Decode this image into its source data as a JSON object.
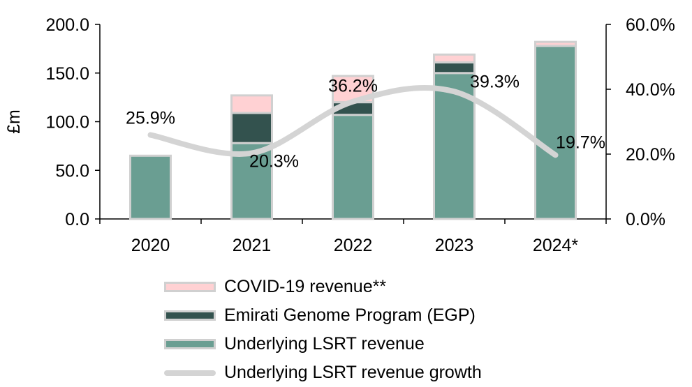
{
  "chart_data": {
    "type": "bar",
    "stacked": true,
    "categories": [
      "2020",
      "2021",
      "2022",
      "2023",
      "2024*"
    ],
    "series": [
      {
        "name": "Underlying LSRT revenue",
        "values": [
          65,
          78,
          107,
          150,
          178
        ],
        "color": "#6a9e92"
      },
      {
        "name": "Emirati Genome Program (EGP)",
        "values": [
          0,
          31,
          13,
          11,
          0
        ],
        "color": "#33524e"
      },
      {
        "name": "COVID-19 revenue**",
        "values": [
          0,
          18,
          27,
          8,
          4
        ],
        "color": "#ffd1d3"
      }
    ],
    "line_series": {
      "name": "Underlying LSRT revenue growth",
      "values": [
        25.9,
        20.3,
        36.2,
        39.3,
        19.7
      ],
      "labels": [
        "25.9%",
        "20.3%",
        "36.2%",
        "39.3%",
        "19.7%"
      ],
      "color": "#d4d4d4",
      "axis": "right"
    },
    "ylabel": "£m",
    "ylim": [
      0,
      200
    ],
    "yticks": [
      "0.0",
      "50.0",
      "100.0",
      "150.0",
      "200.0"
    ],
    "y2lim": [
      0,
      60
    ],
    "y2ticks": [
      "0.0%",
      "20.0%",
      "40.0%",
      "60.0%"
    ],
    "legend": [
      "COVID-19 revenue**",
      "Emirati Genome Program (EGP)",
      "Underlying LSRT revenue",
      "Underlying LSRT revenue growth"
    ],
    "legend_position": "bottom",
    "bar_outline_color": "#d0d0d0"
  }
}
